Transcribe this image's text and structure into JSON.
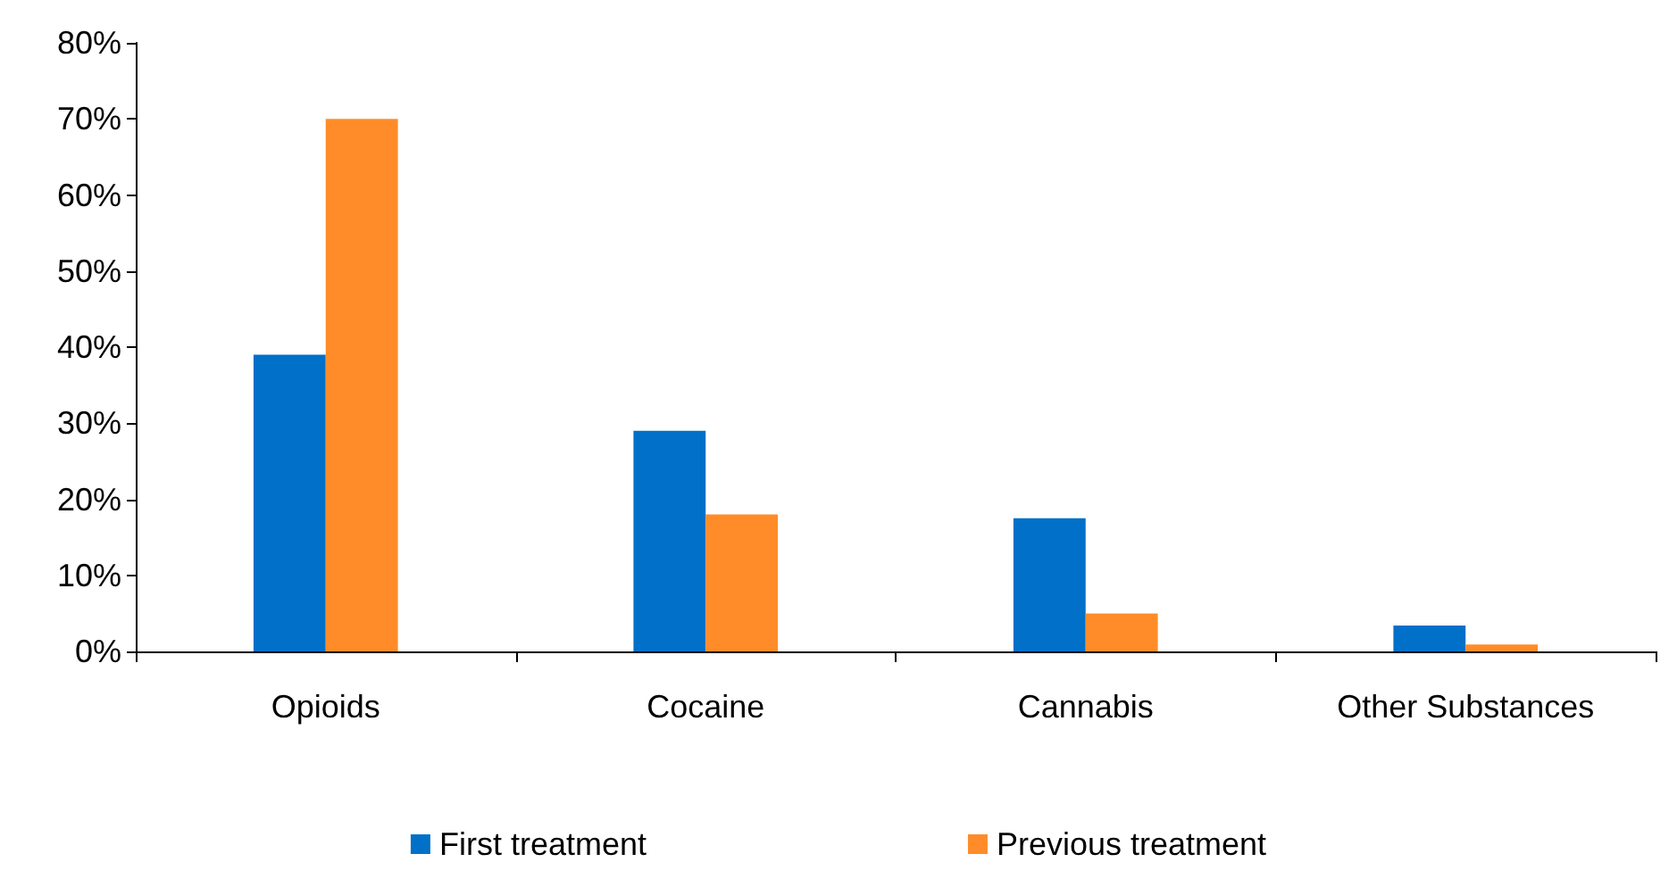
{
  "chart_data": {
    "type": "bar",
    "categories": [
      "Opioids",
      "Cocaine",
      "Cannabis",
      "Other Substances"
    ],
    "series": [
      {
        "name": "First treatment",
        "color": "#0070c8",
        "values": [
          39,
          29,
          17.5,
          3.4
        ]
      },
      {
        "name": "Previous treatment",
        "color": "#ff8c28",
        "values": [
          70,
          18,
          5,
          0.9
        ]
      }
    ],
    "ylim": [
      0,
      80
    ],
    "yticks": [
      {
        "value": 0,
        "label": "0%"
      },
      {
        "value": 10,
        "label": "10%"
      },
      {
        "value": 20,
        "label": "20%"
      },
      {
        "value": 30,
        "label": "30%"
      },
      {
        "value": 40,
        "label": "40%"
      },
      {
        "value": 50,
        "label": "50%"
      },
      {
        "value": 60,
        "label": "60%"
      },
      {
        "value": 70,
        "label": "70%"
      },
      {
        "value": 80,
        "label": "80%"
      }
    ],
    "grid": false,
    "legend": "bottom"
  }
}
